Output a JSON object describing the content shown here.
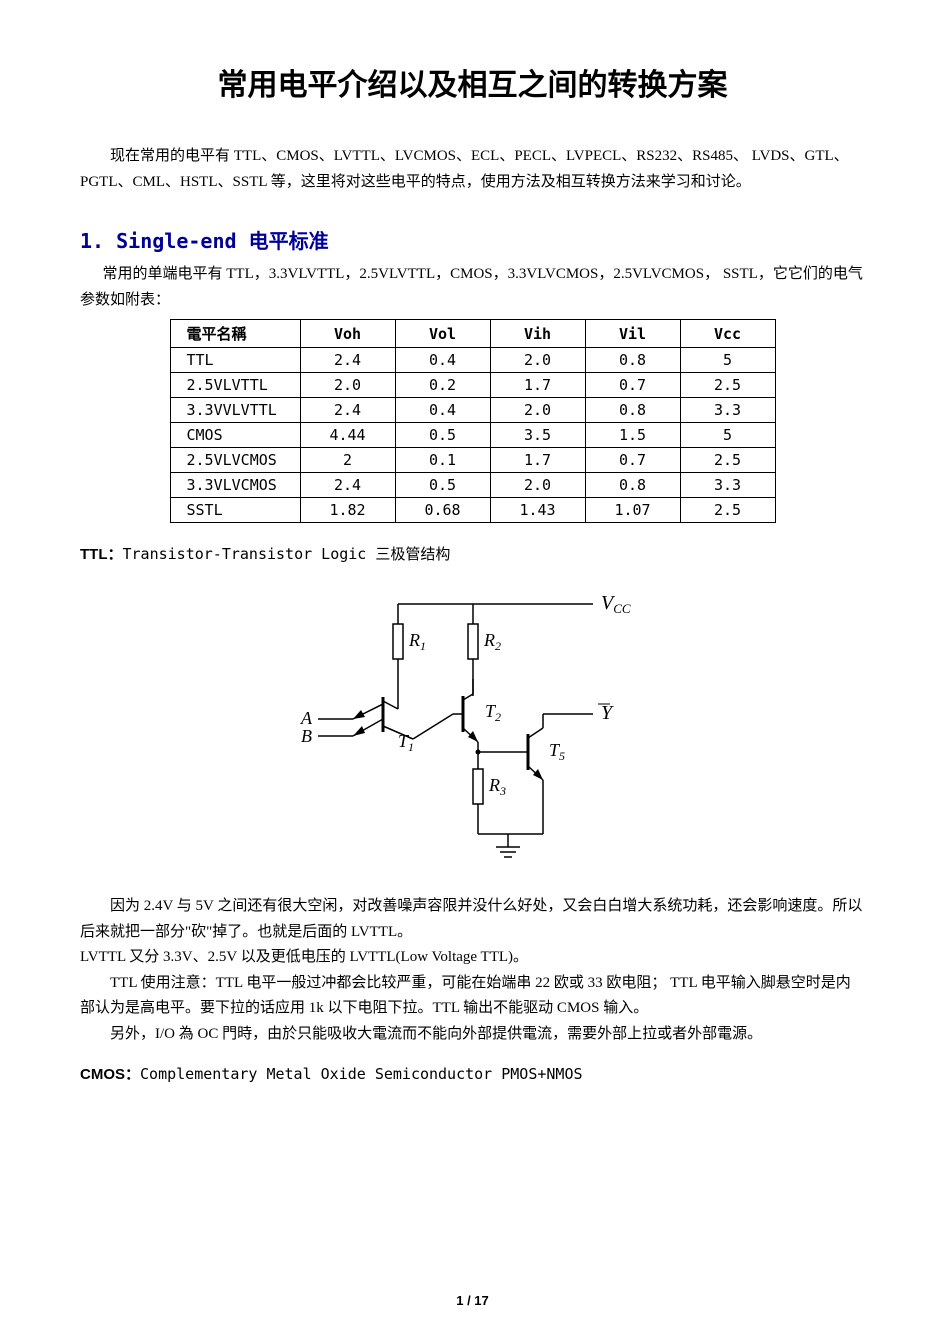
{
  "title": "常用电平介绍以及相互之间的转换方案",
  "intro": "现在常用的电平有 TTL、CMOS、LVTTL、LVCMOS、ECL、PECL、LVPECL、RS232、RS485、 LVDS、GTL、PGTL、CML、HSTL、SSTL 等，这里将对这些电平的特点，使用方法及相互转换方法来学习和讨论。",
  "section1": {
    "heading": "1. Single-end 电平标准",
    "desc": "常用的单端电平有 TTL，3.3VLVTTL，2.5VLVTTL，CMOS，3.3VLVCMOS，2.5VLVCMOS， SSTL，它它们的电气参数如附表：",
    "table": {
      "headers": [
        "電平名稱",
        "Voh",
        "Vol",
        "Vih",
        "Vil",
        "Vcc"
      ],
      "rows": [
        [
          "TTL",
          "2.4",
          "0.4",
          "2.0",
          "0.8",
          "5"
        ],
        [
          "2.5VLVTTL",
          "2.0",
          "0.2",
          "1.7",
          "0.7",
          "2.5"
        ],
        [
          "3.3VVLVTTL",
          "2.4",
          "0.4",
          "2.0",
          "0.8",
          "3.3"
        ],
        [
          "CMOS",
          "4.44",
          "0.5",
          "3.5",
          "1.5",
          "5"
        ],
        [
          "2.5VLVCMOS",
          "2",
          "0.1",
          "1.7",
          "0.7",
          "2.5"
        ],
        [
          "3.3VLVCMOS",
          "2.4",
          " 0.5",
          "2.0",
          "0.8",
          "3.3"
        ],
        [
          "SSTL",
          "1.82",
          "0.68",
          "1.43",
          "1.07",
          "2.5"
        ]
      ]
    }
  },
  "ttl": {
    "label": "TTL：",
    "desc": "Transistor-Transistor Logic 三极管结构",
    "diagram": {
      "labels": {
        "vcc": "V",
        "vcc_sub": "CC",
        "r1": "R",
        "r1_sub": "1",
        "r2": "R",
        "r2_sub": "2",
        "r3": "R",
        "r3_sub": "3",
        "t1": "T",
        "t1_sub": "1",
        "t2": "T",
        "t2_sub": "2",
        "t5": "T",
        "t5_sub": "5",
        "a": "A",
        "b": "B",
        "y": "Y"
      }
    },
    "para1": "因为 2.4V 与 5V 之间还有很大空闲，对改善噪声容限并没什么好处，又会白白增大系统功耗，还会影响速度。所以后来就把一部分\"砍\"掉了。也就是后面的 LVTTL。",
    "para2": "LVTTL 又分 3.3V、2.5V 以及更低电压的 LVTTL(Low Voltage TTL)。",
    "para3": "TTL 使用注意：TTL 电平一般过冲都会比较严重，可能在始端串 22 欧或 33 欧电阻； TTL 电平输入脚悬空时是内部认为是高电平。要下拉的话应用 1k 以下电阻下拉。TTL 输出不能驱动 CMOS 输入。",
    "para4": "另外，I/O 為 OC 門時，由於只能吸收大電流而不能向外部提供電流，需要外部上拉或者外部電源。"
  },
  "cmos": {
    "label": "CMOS：",
    "desc": "Complementary Metal Oxide Semiconductor PMOS+NMOS"
  },
  "page_number": "1 / 17"
}
